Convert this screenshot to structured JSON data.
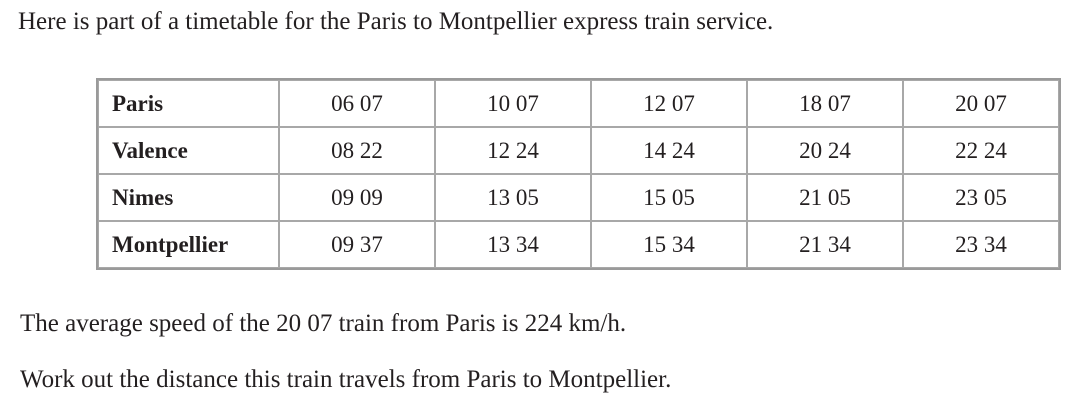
{
  "intro": "Here is part of a timetable for the Paris to Montpellier express train service.",
  "table": {
    "rows": [
      [
        "Paris",
        "06 07",
        "10 07",
        "12 07",
        "18 07",
        "20 07"
      ],
      [
        "Valence",
        "08 22",
        "12 24",
        "14 24",
        "20 24",
        "22 24"
      ],
      [
        "Nimes",
        "09 09",
        "13 05",
        "15 05",
        "21 05",
        "23 05"
      ],
      [
        "Montpellier",
        "09 37",
        "13 34",
        "15 34",
        "21 34",
        "23 34"
      ]
    ]
  },
  "question": [
    "The average speed of the 20 07 train from Paris is 224 km/h.",
    "Work out the distance this train travels from Paris to Montpellier."
  ]
}
